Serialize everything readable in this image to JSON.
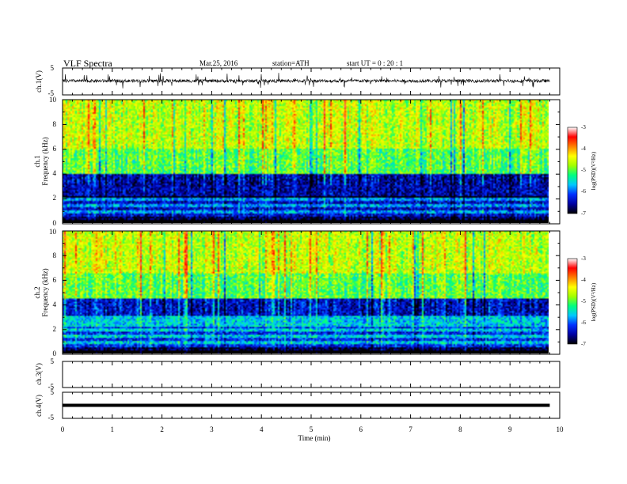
{
  "header": {
    "title": "VLF  Spectra",
    "date": "Mar.25, 2016",
    "station": "station=ATH",
    "start_ut": "start  UT  =    0  : 20 : 1"
  },
  "chart_data": [
    {
      "type": "line",
      "name": "ch1-waveform",
      "ylabel": "ch.1(V)",
      "ylim": [
        -5,
        5
      ],
      "yticks": [
        "5",
        "-5"
      ],
      "baseline_v": 0.2,
      "noise_amplitude_v": 0.6,
      "spike_amplitude_v": 2.5,
      "xlim": [
        0,
        10
      ],
      "data_end_min": 9.8
    },
    {
      "type": "heatmap",
      "name": "ch1-spectrogram",
      "ylabel": [
        "ch.1",
        "Frequency  (kHz)"
      ],
      "xlim": [
        0,
        10
      ],
      "ylim": [
        0,
        10
      ],
      "yticks": [
        "0",
        "2",
        "4",
        "6",
        "8",
        "10"
      ],
      "colorbar": {
        "label": "log(PSD)(V²/Hz)",
        "range": [
          -7,
          -3
        ],
        "ticks": [
          "-3",
          "-4",
          "-5",
          "-6",
          "-7"
        ]
      },
      "bands_khz": [
        {
          "from": 0,
          "to": 0.5,
          "level": -6.8
        },
        {
          "from": 0.5,
          "to": 2,
          "level": -5.8
        },
        {
          "from": 2,
          "to": 4,
          "level": -6.5
        },
        {
          "from": 4,
          "to": 6,
          "level": -5.0
        },
        {
          "from": 6,
          "to": 10,
          "level": -4.6
        }
      ]
    },
    {
      "type": "heatmap",
      "name": "ch2-spectrogram",
      "ylabel": [
        "ch.2",
        "Frequency  (kHz)"
      ],
      "xlim": [
        0,
        10
      ],
      "ylim": [
        0,
        10
      ],
      "yticks": [
        "0",
        "2",
        "4",
        "6",
        "8",
        "10"
      ],
      "colorbar": {
        "label": "log(PSD)(V²/Hz)",
        "range": [
          -7,
          -3
        ],
        "ticks": [
          "-3",
          "-4",
          "-5",
          "-6",
          "-7"
        ]
      },
      "bands_khz": [
        {
          "from": 0,
          "to": 0.5,
          "level": -6.8
        },
        {
          "from": 0.5,
          "to": 3,
          "level": -5.6
        },
        {
          "from": 3,
          "to": 4.5,
          "level": -6.4
        },
        {
          "from": 4.5,
          "to": 6.5,
          "level": -5.0
        },
        {
          "from": 6.5,
          "to": 10,
          "level": -4.6
        }
      ]
    },
    {
      "type": "line",
      "name": "ch3-waveform",
      "ylabel": "ch.3(V)",
      "ylim": [
        -5,
        5
      ],
      "yticks": [
        "5",
        "-5"
      ],
      "xlim": [
        0,
        10
      ]
    },
    {
      "type": "line",
      "name": "ch4-waveform",
      "ylabel": "ch.4(V)",
      "ylim": [
        -5,
        5
      ],
      "yticks": [
        "5",
        "-5"
      ],
      "baseline_v": 0,
      "xlim": [
        0,
        10
      ],
      "data_end_min": 9.8
    }
  ],
  "xaxis": {
    "label": "Time  (min)",
    "ticks": [
      "0",
      "1",
      "2",
      "3",
      "4",
      "5",
      "6",
      "7",
      "8",
      "9",
      "10"
    ]
  },
  "colors": {
    "colormap": [
      "#000000",
      "#0000a0",
      "#0030ff",
      "#00c8ff",
      "#00ff80",
      "#a0ff00",
      "#ffff00",
      "#ff8000",
      "#ff0000",
      "#ffffff"
    ]
  }
}
